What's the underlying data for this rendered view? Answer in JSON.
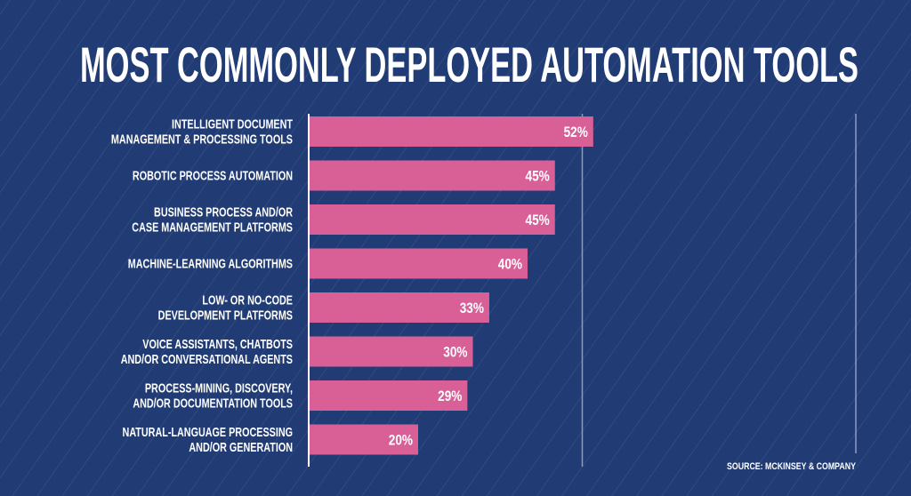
{
  "chart_data": {
    "type": "bar",
    "orientation": "horizontal",
    "title": "MOST COMMONLY DEPLOYED AUTOMATION TOOLS",
    "categories": [
      [
        "INTELLIGENT DOCUMENT",
        "MANAGEMENT & PROCESSING TOOLS"
      ],
      [
        "ROBOTIC PROCESS AUTOMATION"
      ],
      [
        "BUSINESS PROCESS AND/OR",
        "CASE MANAGEMENT PLATFORMS"
      ],
      [
        "MACHINE-LEARNING ALGORITHMS"
      ],
      [
        "LOW- OR NO-CODE",
        "DEVELOPMENT PLATFORMS"
      ],
      [
        "VOICE ASSISTANTS, CHATBOTS",
        "AND/OR CONVERSATIONAL AGENTS"
      ],
      [
        "PROCESS-MINING, DISCOVERY,",
        "AND/OR DOCUMENTATION TOOLS"
      ],
      [
        "NATURAL-LANGUAGE PROCESSING",
        "AND/OR GENERATION"
      ]
    ],
    "values": [
      52,
      45,
      45,
      40,
      33,
      30,
      29,
      20
    ],
    "value_labels": [
      "52%",
      "45%",
      "45%",
      "40%",
      "33%",
      "30%",
      "29%",
      "20%"
    ],
    "xlim": [
      0,
      100
    ],
    "gridlines": [
      50,
      100
    ],
    "source": "SOURCE: MCKINSEY & COMPANY",
    "colors": {
      "background": "#213c75",
      "bar": "#d95f97",
      "text": "#ffffff",
      "grid": "#8a9cc0"
    }
  }
}
